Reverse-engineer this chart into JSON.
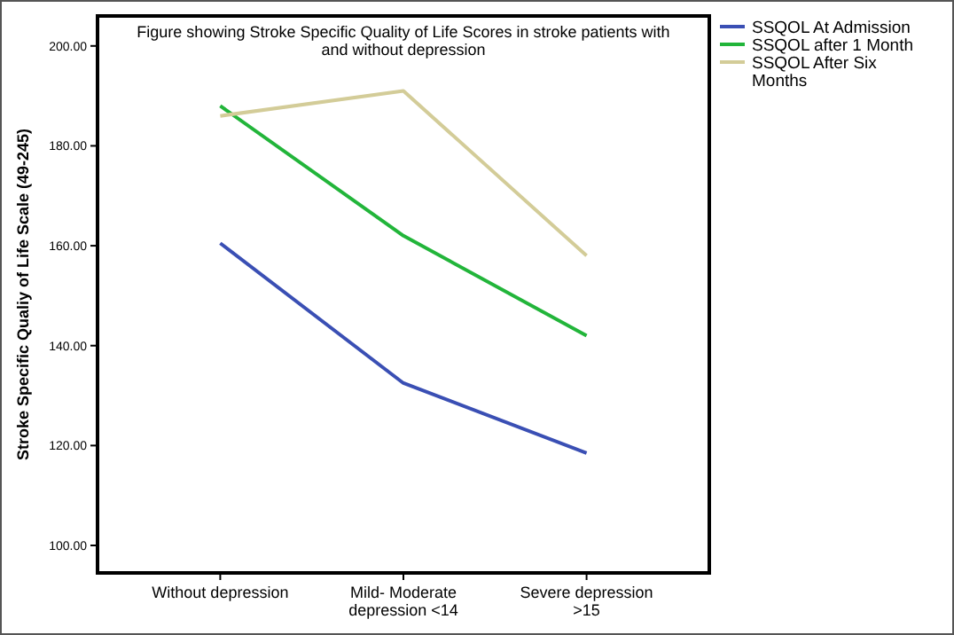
{
  "chart_data": {
    "type": "line",
    "title": "Figure showing Stroke Specific Quality of Life Scores in stroke patients with and without depression",
    "ylabel": "Stroke Specific Qualiy of Life Scale (49-245)",
    "categories": [
      "Without depression",
      "Mild- Moderate depression <14",
      "Severe depression >15"
    ],
    "series": [
      {
        "name": "SSQOL At Admission",
        "color": "#3a4fb4",
        "values": [
          160.5,
          132.5,
          118.5
        ]
      },
      {
        "name": "SSQOL after 1 Month",
        "color": "#22b53a",
        "values": [
          188,
          162,
          142
        ]
      },
      {
        "name": "SSQOL After Six Months",
        "color": "#d3cc98",
        "values": [
          186,
          191,
          158
        ]
      }
    ],
    "ylim": [
      94.5,
      206
    ],
    "yticks": [
      {
        "value": 100,
        "label": "100.00"
      },
      {
        "value": 120,
        "label": "120.00"
      },
      {
        "value": 140,
        "label": "140.00"
      },
      {
        "value": 160,
        "label": "160.00"
      },
      {
        "value": 180,
        "label": "180.00"
      },
      {
        "value": 200,
        "label": "200.00"
      }
    ],
    "legend": "right",
    "marker": "none",
    "line_style": "solid",
    "grid": false
  }
}
